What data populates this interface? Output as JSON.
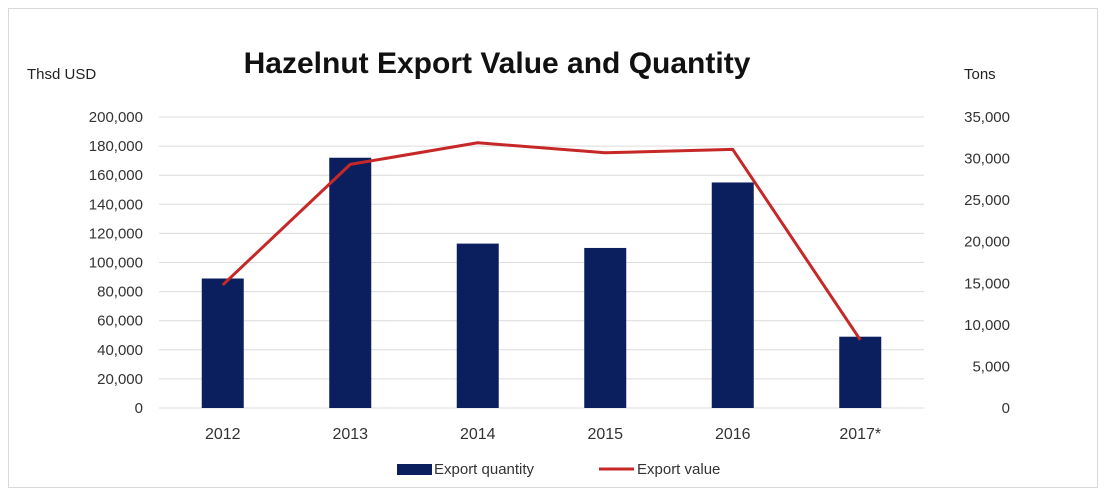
{
  "chart_data": {
    "type": "bar",
    "title": "Hazelnut Export Value and Quantity",
    "ylabel_left": "Thsd USD",
    "ylabel_right": "Tons",
    "categories": [
      "2012",
      "2013",
      "2014",
      "2015",
      "2016",
      "2017*"
    ],
    "left_axis": {
      "min": 0,
      "max": 200000,
      "ticks": [
        "0",
        "20,000",
        "40,000",
        "60,000",
        "80,000",
        "100,000",
        "120,000",
        "140,000",
        "160,000",
        "180,000",
        "200,000"
      ]
    },
    "right_axis": {
      "min": 0,
      "max": 35000,
      "ticks": [
        "0",
        "5,000",
        "10,000",
        "15,000",
        "20,000",
        "25,000",
        "30,000",
        "35,000"
      ]
    },
    "series": [
      {
        "name": "Export quantity",
        "type": "bar",
        "axis": "left",
        "color": "#0b1f5e",
        "values": [
          89000,
          172000,
          113000,
          110000,
          155000,
          49000
        ]
      },
      {
        "name": "Export value",
        "type": "line",
        "axis": "right",
        "color": "#c62828",
        "values": [
          14800,
          29300,
          31900,
          30700,
          31100,
          8200
        ]
      }
    ],
    "grid": true,
    "legend": "bottom"
  }
}
